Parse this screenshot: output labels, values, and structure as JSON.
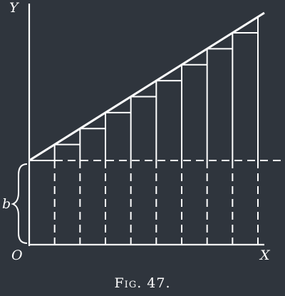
{
  "colors": {
    "background": "#2f353d",
    "stroke": "#ffffff"
  },
  "labels": {
    "y_axis": "Y",
    "x_axis": "X",
    "origin": "O",
    "intercept": "b"
  },
  "caption": "Fig. 47.",
  "diagram": {
    "steps": 9
  }
}
